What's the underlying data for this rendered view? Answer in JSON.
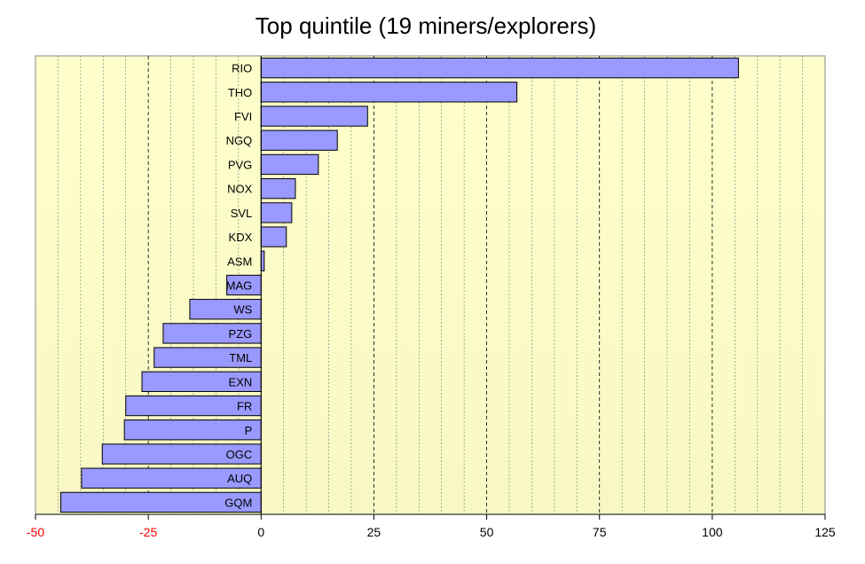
{
  "chart_data": {
    "type": "bar",
    "orientation": "horizontal",
    "title": "Top quintile (19 miners/explorers)",
    "xlabel": "",
    "ylabel": "",
    "xlim": [
      -50,
      125
    ],
    "x_ticks": [
      -50,
      -25,
      0,
      25,
      50,
      75,
      100,
      125
    ],
    "x_tick_labels": [
      "-50",
      "-25",
      "0",
      "25",
      "50",
      "75",
      "100",
      "125"
    ],
    "grid": true,
    "categories": [
      "RIO",
      "THO",
      "FVI",
      "NGQ",
      "PVG",
      "NOX",
      "SVL",
      "KDX",
      "ASM",
      "MAG",
      "WS",
      "PZG",
      "TML",
      "EXN",
      "FR",
      "P",
      "OGC",
      "AUQ",
      "GQM"
    ],
    "values": [
      105.8,
      56.7,
      23.6,
      16.9,
      12.7,
      7.6,
      6.8,
      5.6,
      0.7,
      -7.6,
      -15.8,
      -21.7,
      -23.7,
      -26.4,
      -30.0,
      -30.3,
      -35.2,
      -39.8,
      -44.4
    ],
    "colors": {
      "bar_fill": "#9999ff",
      "bar_stroke": "#000000",
      "plot_background": "#ffffcc",
      "negative_tick": "#ff0000",
      "positive_tick": "#000000"
    }
  }
}
